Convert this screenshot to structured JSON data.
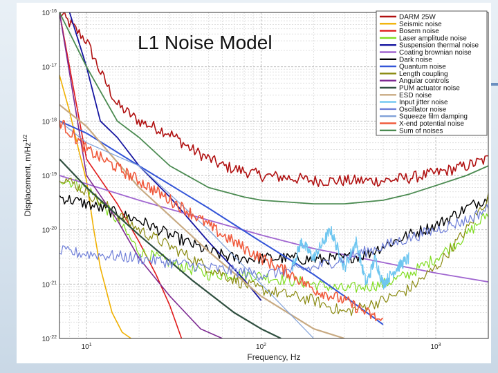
{
  "slide": {
    "title": "L1 Noise Model"
  },
  "chart_data": {
    "type": "line",
    "title": "",
    "xlabel": "Frequency, Hz",
    "ylabel": "Displacement, m/Hz",
    "ylabel_sup": "1/2",
    "x_scale": "log",
    "y_scale": "log",
    "xlim": [
      7,
      2000
    ],
    "ylim": [
      1e-22,
      1e-16
    ],
    "grid": true,
    "legend_position": "top-right",
    "x_ticks": [
      {
        "value": 10,
        "base": "10",
        "exp": "1"
      },
      {
        "value": 100,
        "base": "10",
        "exp": "2"
      },
      {
        "value": 1000,
        "base": "10",
        "exp": "3"
      }
    ],
    "y_ticks": [
      {
        "value": 1e-16,
        "base": "10",
        "exp": "-16"
      },
      {
        "value": 1e-17,
        "base": "10",
        "exp": "-17"
      },
      {
        "value": 1e-18,
        "base": "10",
        "exp": "-18"
      },
      {
        "value": 1e-19,
        "base": "10",
        "exp": "-19"
      },
      {
        "value": 1e-20,
        "base": "10",
        "exp": "-20"
      },
      {
        "value": 1e-21,
        "base": "10",
        "exp": "-21"
      },
      {
        "value": 1e-22,
        "base": "10",
        "exp": "-22"
      }
    ],
    "series": [
      {
        "name": "DARM 25W",
        "color": "#b01010",
        "width": 1.6,
        "style": "noisy",
        "x": [
          7,
          10,
          12,
          15,
          20,
          30,
          40,
          60,
          80,
          100,
          150,
          200,
          300,
          500,
          700,
          1000,
          1500,
          2000
        ],
        "y": [
          1e-16,
          3e-17,
          8e-18,
          2e-18,
          1e-18,
          6e-19,
          3e-19,
          1.5e-19,
          1.2e-19,
          1e-19,
          9e-20,
          8e-20,
          8e-20,
          8e-20,
          9e-20,
          1.1e-19,
          1.5e-19,
          2e-19
        ]
      },
      {
        "name": "Seismic noise",
        "color": "#f0b000",
        "width": 1.6,
        "style": "smooth",
        "x": [
          7,
          8,
          9,
          10,
          11,
          12,
          14,
          16,
          18
        ],
        "y": [
          7e-18,
          1.5e-18,
          3e-19,
          8e-20,
          1e-20,
          2e-21,
          3e-22,
          1.3e-22,
          1e-22
        ]
      },
      {
        "name": "Bosem noise",
        "color": "#e01818",
        "width": 1.6,
        "style": "smooth",
        "x": [
          7,
          10,
          15,
          20,
          25,
          30,
          35
        ],
        "y": [
          1e-16,
          2e-19,
          3e-20,
          6e-21,
          1.5e-21,
          4e-22,
          1e-22
        ]
      },
      {
        "name": "Laser amplitude noise",
        "color": "#7fdc1e",
        "width": 1.2,
        "style": "noisy",
        "x": [
          7,
          10,
          15,
          20,
          30,
          50,
          80,
          100,
          200,
          300,
          500,
          700,
          1000,
          1500,
          2000
        ],
        "y": [
          9e-20,
          6e-20,
          1.5e-20,
          4e-21,
          2.5e-21,
          1.5e-21,
          1.5e-21,
          1.4e-21,
          1e-21,
          8e-22,
          1e-21,
          1.5e-21,
          3e-21,
          8e-21,
          2e-20
        ]
      },
      {
        "name": "Suspension thermal noise",
        "color": "#1515a0",
        "width": 1.8,
        "style": "smooth",
        "x": [
          8,
          10,
          12,
          15,
          20,
          30,
          50,
          80,
          100
        ],
        "y": [
          1e-16,
          1e-17,
          1e-18,
          5e-19,
          1.5e-19,
          4e-20,
          6e-21,
          1.2e-21,
          5e-22
        ]
      },
      {
        "name": "Coating brownian noise",
        "color": "#a066d0",
        "width": 1.8,
        "style": "smooth",
        "x": [
          7,
          20,
          50,
          100,
          200,
          500,
          1000,
          2000
        ],
        "y": [
          1e-19,
          3.5e-20,
          1.5e-20,
          8e-21,
          4.5e-21,
          2.5e-21,
          1.6e-21,
          1.1e-21
        ]
      },
      {
        "name": "Dark noise",
        "color": "#000000",
        "width": 1.4,
        "style": "noisy",
        "x": [
          7,
          10,
          20,
          30,
          50,
          70,
          100,
          150,
          200,
          300,
          400,
          500,
          700,
          1000,
          1500,
          2000
        ],
        "y": [
          4e-20,
          3e-20,
          1.5e-20,
          8e-21,
          4e-21,
          3e-21,
          3e-21,
          3e-21,
          2.8e-21,
          3e-21,
          3.5e-21,
          5e-21,
          8e-21,
          1.2e-20,
          2.5e-20,
          4e-20
        ]
      },
      {
        "name": "Quantum noise",
        "color": "#3355d8",
        "width": 2.0,
        "style": "smooth",
        "x": [
          7,
          10,
          20,
          50,
          100,
          200,
          300,
          500
        ],
        "y": [
          1e-18,
          6e-19,
          1.5e-19,
          2.5e-20,
          6e-21,
          1.5e-21,
          6e-22,
          1.8e-22
        ]
      },
      {
        "name": "Length coupling",
        "color": "#8a8a10",
        "width": 1.2,
        "style": "noisy",
        "x": [
          7,
          10,
          20,
          30,
          50,
          80,
          100,
          200,
          300,
          500,
          700,
          1000,
          1500,
          2000
        ],
        "y": [
          1e-19,
          5e-20,
          1e-20,
          5e-21,
          2e-21,
          1e-21,
          8e-22,
          5e-22,
          3e-22,
          5e-22,
          8e-22,
          2e-21,
          1e-20,
          4e-20
        ]
      },
      {
        "name": "Angular controls",
        "color": "#7d2a92",
        "width": 1.6,
        "style": "smooth",
        "x": [
          7,
          10,
          15,
          20,
          30,
          45,
          60
        ],
        "y": [
          1e-16,
          1e-19,
          1.5e-20,
          3e-21,
          6e-22,
          1.5e-22,
          1e-22
        ]
      },
      {
        "name": "PUM actuator noise",
        "color": "#2f4f3f",
        "width": 2.2,
        "style": "smooth",
        "x": [
          7,
          10,
          20,
          40,
          70,
          100,
          130
        ],
        "y": [
          2e-19,
          6e-20,
          8e-21,
          1.2e-21,
          3e-22,
          1.5e-22,
          1e-22
        ]
      },
      {
        "name": "ESD noise",
        "color": "#c8aa82",
        "width": 2.2,
        "style": "smooth",
        "x": [
          7,
          10,
          20,
          50,
          100,
          200,
          300
        ],
        "y": [
          2e-18,
          8e-19,
          6e-20,
          4e-21,
          6e-22,
          1.5e-22,
          1e-22
        ]
      },
      {
        "name": "Input jitter noise",
        "color": "#6ec6f0",
        "width": 1.4,
        "style": "noisy",
        "x": [
          150,
          170,
          200,
          250,
          300,
          350,
          400,
          450,
          500,
          600,
          700
        ],
        "y": [
          2e-21,
          6e-21,
          3e-21,
          1e-20,
          2e-21,
          6e-21,
          1e-21,
          3e-21,
          1e-21,
          2e-21,
          3e-21
        ]
      },
      {
        "name": "Oscillator noise",
        "color": "#6f7fd8",
        "width": 1.2,
        "style": "noisy",
        "x": [
          7,
          20,
          50,
          100,
          200,
          300,
          500,
          700,
          1000,
          1500,
          2000
        ],
        "y": [
          4e-21,
          3e-21,
          2e-21,
          1.5e-21,
          2e-21,
          3e-21,
          5e-21,
          7e-21,
          1e-20,
          1.5e-20,
          2.5e-20
        ]
      },
      {
        "name": "Squeeze film damping",
        "color": "#7fa0d8",
        "width": 1.2,
        "style": "smooth",
        "x": [
          7,
          10,
          20,
          50,
          100,
          200
        ],
        "y": [
          1e-18,
          4e-19,
          1.5e-19,
          1e-20,
          1e-21,
          1e-22
        ]
      },
      {
        "name": "X-end potential noise",
        "color": "#f05a3c",
        "width": 1.6,
        "style": "noisy",
        "x": [
          7,
          10,
          20,
          40,
          60,
          100,
          150,
          200,
          300,
          400,
          500
        ],
        "y": [
          1e-18,
          3e-19,
          8e-20,
          2e-20,
          8e-21,
          3e-21,
          1.5e-21,
          8e-22,
          5e-22,
          3e-22,
          2e-22
        ]
      },
      {
        "name": "Sum of noises",
        "color": "#4a8a50",
        "width": 1.8,
        "style": "smooth",
        "x": [
          7,
          10,
          15,
          20,
          30,
          50,
          80,
          100,
          150,
          200,
          300,
          500,
          700,
          1000,
          1500,
          2000
        ],
        "y": [
          1e-16,
          1e-17,
          1e-18,
          5e-19,
          1.5e-19,
          6e-20,
          4e-20,
          3.5e-20,
          3.2e-20,
          3e-20,
          3e-20,
          3.5e-20,
          4.5e-20,
          6.5e-20,
          1e-19,
          1.5e-19
        ]
      }
    ]
  }
}
